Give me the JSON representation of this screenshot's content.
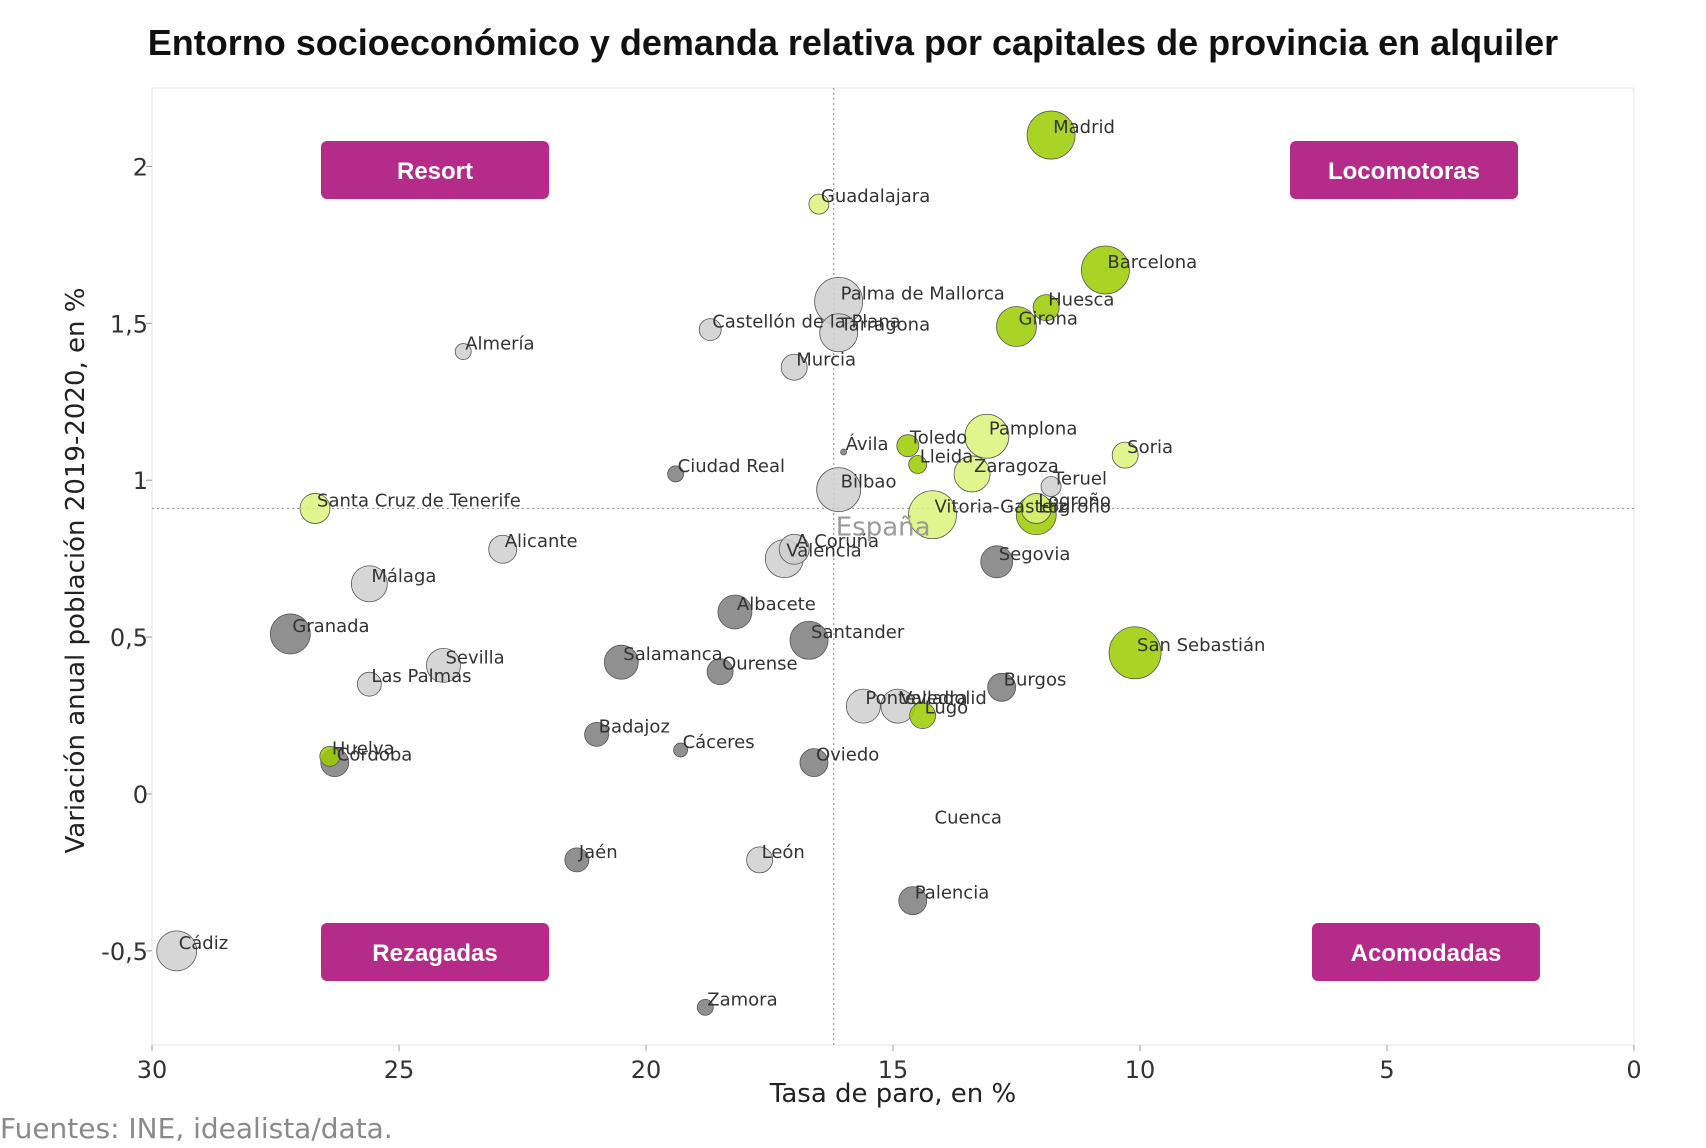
{
  "chart_data": {
    "type": "scatter",
    "title": "Entorno socioeconómico y demanda relativa por capitales de provincia en alquiler",
    "xlabel": "Tasa de paro, en %",
    "ylabel": "Variación anual población 2019-2020, en %",
    "xlim": [
      30,
      0
    ],
    "ylim": [
      -0.8,
      2.25
    ],
    "x_reversed": true,
    "x_ticks": [
      30,
      25,
      20,
      15,
      10,
      5,
      0
    ],
    "x_tick_labels": [
      "30",
      "25",
      "20",
      "15",
      "10",
      "5",
      "0"
    ],
    "y_ticks": [
      -0.5,
      0,
      0.5,
      1,
      1.5,
      2
    ],
    "y_tick_labels": [
      "-0,5",
      "0",
      "0,5",
      "1",
      "1,5",
      "2"
    ],
    "grid": false,
    "reference": {
      "label": "España",
      "x": 16.2,
      "y": 0.91
    },
    "quadrants": [
      {
        "label": "Resort",
        "position": "top-left"
      },
      {
        "label": "Locomotoras",
        "position": "top-right"
      },
      {
        "label": "Rezagadas",
        "position": "bottom-left"
      },
      {
        "label": "Acomodadas",
        "position": "bottom-right"
      }
    ],
    "colors": {
      "dark_green": "#9ACD00",
      "light_green": "#DDF27A",
      "dark_gray": "#7D7D7D",
      "light_gray": "#CFCFCF",
      "quadrant_box": "#B42B8A",
      "reference_line": "#9A9A9A"
    },
    "points": [
      {
        "name": "Madrid",
        "x": 11.8,
        "y": 2.1,
        "size": 24,
        "color": "dark_green"
      },
      {
        "name": "Guadalajara",
        "x": 16.5,
        "y": 1.88,
        "size": 10,
        "color": "light_green"
      },
      {
        "name": "Barcelona",
        "x": 10.7,
        "y": 1.67,
        "size": 24,
        "color": "dark_green"
      },
      {
        "name": "Palma de Mallorca",
        "x": 16.1,
        "y": 1.57,
        "size": 24,
        "color": "light_gray"
      },
      {
        "name": "Huesca",
        "x": 11.9,
        "y": 1.55,
        "size": 13,
        "color": "dark_green"
      },
      {
        "name": "Girona",
        "x": 12.5,
        "y": 1.49,
        "size": 20,
        "color": "dark_green"
      },
      {
        "name": "Castellón de la Plana",
        "x": 18.7,
        "y": 1.48,
        "size": 11,
        "color": "light_gray"
      },
      {
        "name": "Tarragona",
        "x": 16.1,
        "y": 1.47,
        "size": 19,
        "color": "light_gray"
      },
      {
        "name": "Almería",
        "x": 23.7,
        "y": 1.41,
        "size": 8,
        "color": "light_gray"
      },
      {
        "name": "Murcia",
        "x": 17.0,
        "y": 1.36,
        "size": 13,
        "color": "light_gray"
      },
      {
        "name": "Pamplona",
        "x": 13.1,
        "y": 1.14,
        "size": 22,
        "color": "light_green"
      },
      {
        "name": "Toledo",
        "x": 14.7,
        "y": 1.11,
        "size": 11,
        "color": "dark_green"
      },
      {
        "name": "Ávila",
        "x": 16.0,
        "y": 1.09,
        "size": 3,
        "color": "dark_gray"
      },
      {
        "name": "Soria",
        "x": 10.3,
        "y": 1.08,
        "size": 13,
        "color": "light_green"
      },
      {
        "name": "Lleida",
        "x": 14.5,
        "y": 1.05,
        "size": 9,
        "color": "dark_green"
      },
      {
        "name": "Zaragoza",
        "x": 13.4,
        "y": 1.02,
        "size": 18,
        "color": "light_green"
      },
      {
        "name": "Ciudad Real",
        "x": 19.4,
        "y": 1.02,
        "size": 8,
        "color": "dark_gray"
      },
      {
        "name": "Teruel",
        "x": 11.8,
        "y": 0.98,
        "size": 10,
        "color": "light_gray"
      },
      {
        "name": "Bilbao",
        "x": 16.1,
        "y": 0.97,
        "size": 22,
        "color": "light_gray"
      },
      {
        "name": "Santa Cruz de Tenerife",
        "x": 26.7,
        "y": 0.91,
        "size": 15,
        "color": "light_green"
      },
      {
        "name": "Logroño",
        "x": 12.1,
        "y": 0.91,
        "size": 15,
        "color": "light_green"
      },
      {
        "name": "Vitoria-Gasteiz",
        "x": 14.2,
        "y": 0.89,
        "size": 24,
        "color": "light_green"
      },
      {
        "name": "Logroño",
        "x": 12.1,
        "y": 0.89,
        "size": 20,
        "color": "dark_green"
      },
      {
        "name": "Alicante",
        "x": 22.9,
        "y": 0.78,
        "size": 14,
        "color": "light_gray"
      },
      {
        "name": "A Coruña",
        "x": 17.0,
        "y": 0.78,
        "size": 15,
        "color": "light_gray"
      },
      {
        "name": "Valencia",
        "x": 17.2,
        "y": 0.75,
        "size": 19,
        "color": "light_gray"
      },
      {
        "name": "Segovia",
        "x": 12.9,
        "y": 0.74,
        "size": 16,
        "color": "dark_gray"
      },
      {
        "name": "Málaga",
        "x": 25.6,
        "y": 0.67,
        "size": 18,
        "color": "light_gray"
      },
      {
        "name": "Albacete",
        "x": 18.2,
        "y": 0.58,
        "size": 17,
        "color": "dark_gray"
      },
      {
        "name": "Granada",
        "x": 27.2,
        "y": 0.51,
        "size": 20,
        "color": "dark_gray"
      },
      {
        "name": "Santander",
        "x": 16.7,
        "y": 0.49,
        "size": 19,
        "color": "dark_gray"
      },
      {
        "name": "San Sebastián",
        "x": 10.1,
        "y": 0.45,
        "size": 26,
        "color": "dark_green"
      },
      {
        "name": "Salamanca",
        "x": 20.5,
        "y": 0.42,
        "size": 17,
        "color": "dark_gray"
      },
      {
        "name": "Sevilla",
        "x": 24.1,
        "y": 0.41,
        "size": 17,
        "color": "light_gray"
      },
      {
        "name": "Ourense",
        "x": 18.5,
        "y": 0.39,
        "size": 13,
        "color": "dark_gray"
      },
      {
        "name": "Las Palmas",
        "x": 25.6,
        "y": 0.35,
        "size": 12,
        "color": "light_gray"
      },
      {
        "name": "Burgos",
        "x": 12.8,
        "y": 0.34,
        "size": 14,
        "color": "dark_gray"
      },
      {
        "name": "Pontevedra",
        "x": 15.6,
        "y": 0.28,
        "size": 17,
        "color": "light_gray"
      },
      {
        "name": "Valladolid",
        "x": 14.9,
        "y": 0.28,
        "size": 17,
        "color": "light_gray"
      },
      {
        "name": "Lugo",
        "x": 14.4,
        "y": 0.25,
        "size": 13,
        "color": "dark_green"
      },
      {
        "name": "Badajoz",
        "x": 21.0,
        "y": 0.19,
        "size": 12,
        "color": "dark_gray"
      },
      {
        "name": "Cáceres",
        "x": 19.3,
        "y": 0.14,
        "size": 7,
        "color": "dark_gray"
      },
      {
        "name": "Huelva",
        "x": 26.4,
        "y": 0.12,
        "size": 10,
        "color": "dark_green"
      },
      {
        "name": "Córdoba",
        "x": 26.3,
        "y": 0.1,
        "size": 14,
        "color": "dark_gray"
      },
      {
        "name": "Oviedo",
        "x": 16.6,
        "y": 0.1,
        "size": 14,
        "color": "dark_gray"
      },
      {
        "name": "Cuenca",
        "x": 14.2,
        "y": -0.1,
        "size": 0,
        "color": "light_gray"
      },
      {
        "name": "Jaén",
        "x": 21.4,
        "y": -0.21,
        "size": 12,
        "color": "dark_gray"
      },
      {
        "name": "León",
        "x": 17.7,
        "y": -0.21,
        "size": 13,
        "color": "light_gray"
      },
      {
        "name": "Palencia",
        "x": 14.6,
        "y": -0.34,
        "size": 14,
        "color": "dark_gray"
      },
      {
        "name": "Cádiz",
        "x": 29.5,
        "y": -0.5,
        "size": 20,
        "color": "light_gray"
      },
      {
        "name": "Zamora",
        "x": 18.8,
        "y": -0.68,
        "size": 8,
        "color": "dark_gray"
      }
    ]
  },
  "source": "Fuentes: INE, idealista/data."
}
